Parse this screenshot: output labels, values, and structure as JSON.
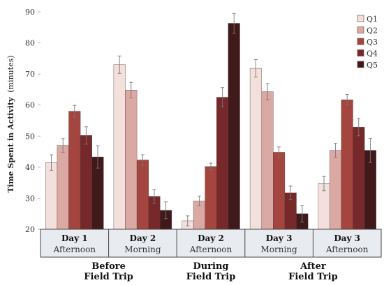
{
  "chart_data": {
    "type": "bar",
    "ylabel_main": "Time Spent in Activity",
    "ylabel_unit": "(minutes)",
    "ylim": [
      20,
      90
    ],
    "yticks": [
      20,
      30,
      40,
      50,
      60,
      70,
      80,
      90
    ],
    "grid": false,
    "legend_position": "top-right",
    "groups": [
      {
        "day": "Day 1",
        "time": "Afternoon"
      },
      {
        "day": "Day 2",
        "time": "Morning"
      },
      {
        "day": "Day 2",
        "time": "Afternoon"
      },
      {
        "day": "Day 3",
        "time": "Morning"
      },
      {
        "day": "Day 3",
        "time": "Afternoon"
      }
    ],
    "phases": [
      {
        "line1": "Before",
        "line2": "Field Trip",
        "groups": [
          0,
          1
        ]
      },
      {
        "line1": "During",
        "line2": "Field Trip",
        "groups": [
          2
        ]
      },
      {
        "line1": "After",
        "line2": "Field Trip",
        "groups": [
          3,
          4
        ]
      }
    ],
    "series": [
      {
        "name": "Q1",
        "color": "#f3e0dc",
        "values": [
          41.5,
          73.0,
          22.7,
          71.8,
          34.7
        ],
        "errors": [
          2.5,
          2.8,
          1.6,
          2.8,
          2.3
        ]
      },
      {
        "name": "Q2",
        "color": "#dba9a3",
        "values": [
          47.0,
          64.8,
          29.1,
          64.3,
          45.4
        ],
        "errors": [
          2.2,
          2.5,
          1.6,
          2.6,
          2.3
        ]
      },
      {
        "name": "Q3",
        "color": "#a4453f",
        "values": [
          58.0,
          42.3,
          40.2,
          44.8,
          61.7
        ],
        "errors": [
          1.9,
          1.7,
          1.1,
          1.7,
          1.7
        ]
      },
      {
        "name": "Q4",
        "color": "#77282a",
        "values": [
          50.2,
          30.6,
          62.5,
          31.7,
          52.9
        ],
        "errors": [
          2.8,
          2.2,
          3.1,
          2.2,
          2.8
        ]
      },
      {
        "name": "Q5",
        "color": "#40191a",
        "values": [
          43.3,
          26.1,
          86.3,
          25.0,
          45.4
        ],
        "errors": [
          3.6,
          2.7,
          3.2,
          2.7,
          3.9
        ]
      }
    ]
  }
}
